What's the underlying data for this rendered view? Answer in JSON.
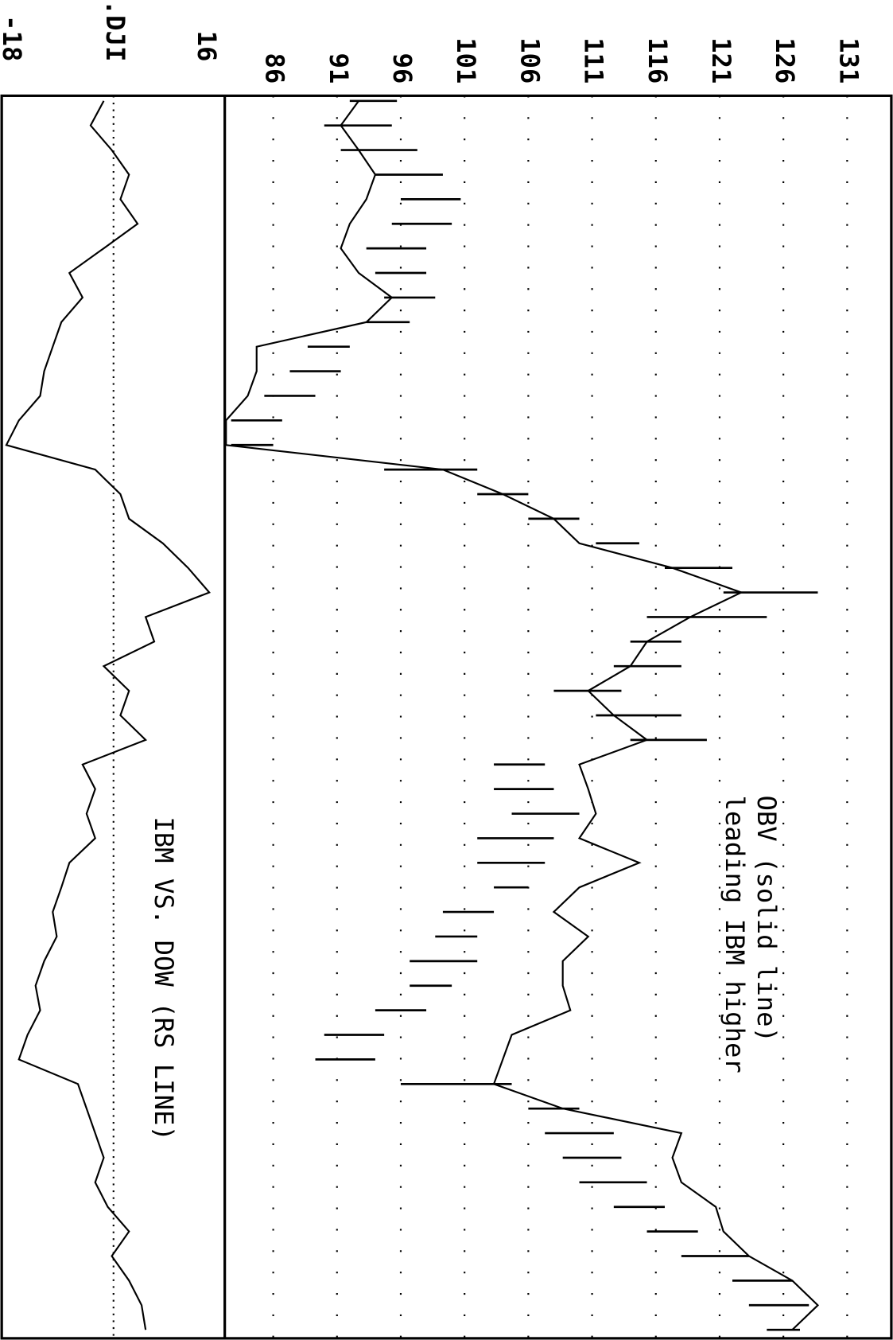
{
  "chart_data": [
    {
      "type": "price-volume",
      "annotation": [
        "OBV (solid line)",
        "leading IBM higher"
      ],
      "high": [
        95.7,
        95.3,
        97.3,
        99.3,
        100.7,
        100.0,
        98.0,
        98.0,
        98.7,
        96.7,
        92.0,
        91.3,
        89.3,
        86.7,
        86.0,
        102.0,
        106.0,
        110.0,
        114.7,
        122.0,
        128.7,
        124.7,
        118.0,
        118.0,
        113.3,
        118.0,
        120.0,
        107.3,
        108.0,
        110.0,
        108.0,
        107.3,
        106.0,
        103.3,
        102.0,
        102.0,
        100.0,
        98.0,
        94.7,
        94.0,
        104.7,
        110.0,
        112.7,
        113.3,
        115.3,
        116.7,
        119.3,
        123.3,
        126.7,
        128.0,
        127.3
      ],
      "low": [
        92.0,
        90.0,
        91.3,
        94.0,
        96.0,
        95.3,
        93.3,
        94.0,
        94.7,
        93.3,
        88.7,
        87.3,
        85.3,
        82.7,
        82.7,
        94.7,
        102.0,
        106.0,
        111.3,
        116.7,
        121.3,
        115.3,
        114.0,
        112.7,
        108.0,
        111.3,
        114.0,
        103.3,
        103.3,
        104.7,
        102.0,
        102.0,
        103.3,
        99.3,
        98.7,
        96.7,
        96.7,
        94.0,
        90.0,
        89.3,
        96.0,
        106.0,
        107.3,
        108.7,
        110.0,
        112.7,
        115.3,
        118.0,
        122.0,
        123.3,
        124.7
      ],
      "obv": [
        92.7,
        91.3,
        92.7,
        94.0,
        93.3,
        92.0,
        91.3,
        92.7,
        95.3,
        93.3,
        84.7,
        84.7,
        84.0,
        82.3,
        82.3,
        99.3,
        104.0,
        108.0,
        110.0,
        117.3,
        122.7,
        118.7,
        115.3,
        114.0,
        110.7,
        112.7,
        115.3,
        110.0,
        110.7,
        111.3,
        110.0,
        114.7,
        110.0,
        108.0,
        110.7,
        108.7,
        108.7,
        109.3,
        104.7,
        104.0,
        103.3,
        108.7,
        118.0,
        117.3,
        118.0,
        120.7,
        121.3,
        123.3,
        126.7,
        128.7,
        126.7
      ],
      "ylim": [
        82.2,
        134.33
      ],
      "yticks": [
        86,
        91,
        96,
        101,
        106,
        111,
        116,
        121,
        126,
        131
      ],
      "grid": true
    },
    {
      "type": "line",
      "annotation": [
        "IBM VS. DOW (RS LINE)"
      ],
      "values": [
        -1.7,
        -4.0,
        -0.3,
        2.7,
        1.2,
        4.2,
        -1.7,
        -7.7,
        -5.4,
        -9.1,
        -10.6,
        -12.1,
        -12.8,
        -16.5,
        -18.7,
        -3.2,
        1.2,
        2.7,
        8.6,
        13.0,
        16.7,
        5.6,
        7.1,
        -1.7,
        2.7,
        1.2,
        5.6,
        -5.4,
        -3.2,
        -4.7,
        -3.2,
        -7.7,
        -9.1,
        -10.6,
        -9.9,
        -12.1,
        -13.6,
        -12.8,
        -15.0,
        -16.5,
        -6.2,
        -4.7,
        -3.2,
        -1.7,
        -3.2,
        -1.0,
        2.7,
        -0.3,
        2.7,
        4.9,
        5.6
      ],
      "ylim": [
        -19.5,
        19.4
      ],
      "yticks": [
        -18,
        {
          "value": 0,
          "label": ".DJI"
        },
        16
      ],
      "grid": false
    }
  ]
}
